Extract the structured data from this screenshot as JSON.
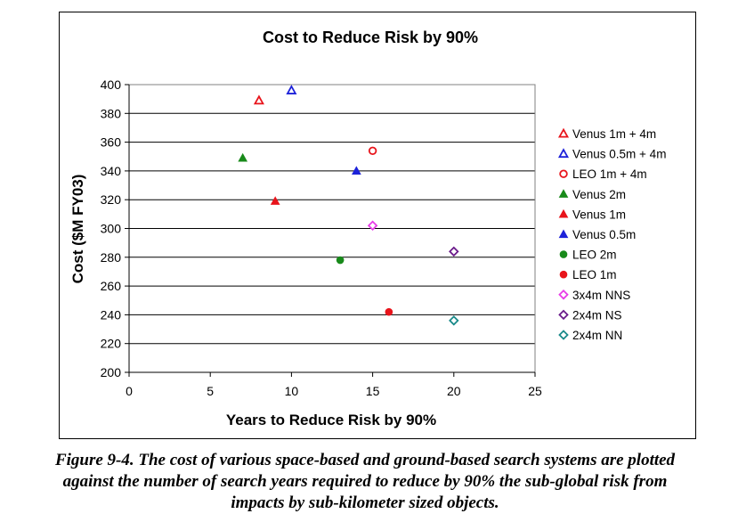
{
  "chart_data": {
    "type": "scatter",
    "title": "Cost to Reduce Risk by 90%",
    "xlabel": "Years to Reduce Risk by 90%",
    "ylabel": "Cost ($M FY03)",
    "xlim": [
      0,
      25
    ],
    "ylim": [
      200,
      400
    ],
    "x_ticks": [
      0,
      5,
      10,
      15,
      20,
      25
    ],
    "y_ticks": [
      200,
      220,
      240,
      260,
      280,
      300,
      320,
      340,
      360,
      380,
      400
    ],
    "grid": "horizontal",
    "legend_position": "right",
    "series": [
      {
        "name": "Venus 1m + 4m",
        "marker": "triangle-open",
        "color": "#e8141b",
        "points": [
          {
            "x": 8,
            "y": 389
          }
        ]
      },
      {
        "name": "Venus 0.5m + 4m",
        "marker": "triangle-open",
        "color": "#1d22d9",
        "points": [
          {
            "x": 10,
            "y": 396
          }
        ]
      },
      {
        "name": "LEO 1m + 4m",
        "marker": "circle-open",
        "color": "#e8141b",
        "points": [
          {
            "x": 15,
            "y": 354
          }
        ]
      },
      {
        "name": "Venus 2m",
        "marker": "triangle",
        "color": "#188a1a",
        "points": [
          {
            "x": 7,
            "y": 349
          }
        ]
      },
      {
        "name": "Venus 1m",
        "marker": "triangle",
        "color": "#e8141b",
        "points": [
          {
            "x": 9,
            "y": 319
          }
        ]
      },
      {
        "name": "Venus 0.5m",
        "marker": "triangle",
        "color": "#1d22d9",
        "points": [
          {
            "x": 14,
            "y": 340
          }
        ]
      },
      {
        "name": "LEO 2m",
        "marker": "circle",
        "color": "#188a1a",
        "points": [
          {
            "x": 13,
            "y": 278
          }
        ]
      },
      {
        "name": "LEO 1m",
        "marker": "circle",
        "color": "#e8141b",
        "points": [
          {
            "x": 16,
            "y": 242
          }
        ]
      },
      {
        "name": "3x4m NNS",
        "marker": "diamond-open",
        "color": "#e83ee8",
        "points": [
          {
            "x": 15,
            "y": 302
          }
        ]
      },
      {
        "name": "2x4m NS",
        "marker": "diamond-open",
        "color": "#6a1a8a",
        "points": [
          {
            "x": 20,
            "y": 284
          }
        ]
      },
      {
        "name": "2x4m NN",
        "marker": "diamond-open",
        "color": "#1a8a8a",
        "points": [
          {
            "x": 20,
            "y": 236
          }
        ]
      }
    ]
  },
  "caption": {
    "line1": "Figure 9-4. The cost of various space-based and ground-based search systems are plotted",
    "line2": "against the number of search years required to reduce by 90% the sub-global risk from",
    "line3": "impacts by sub-kilometer sized objects."
  }
}
